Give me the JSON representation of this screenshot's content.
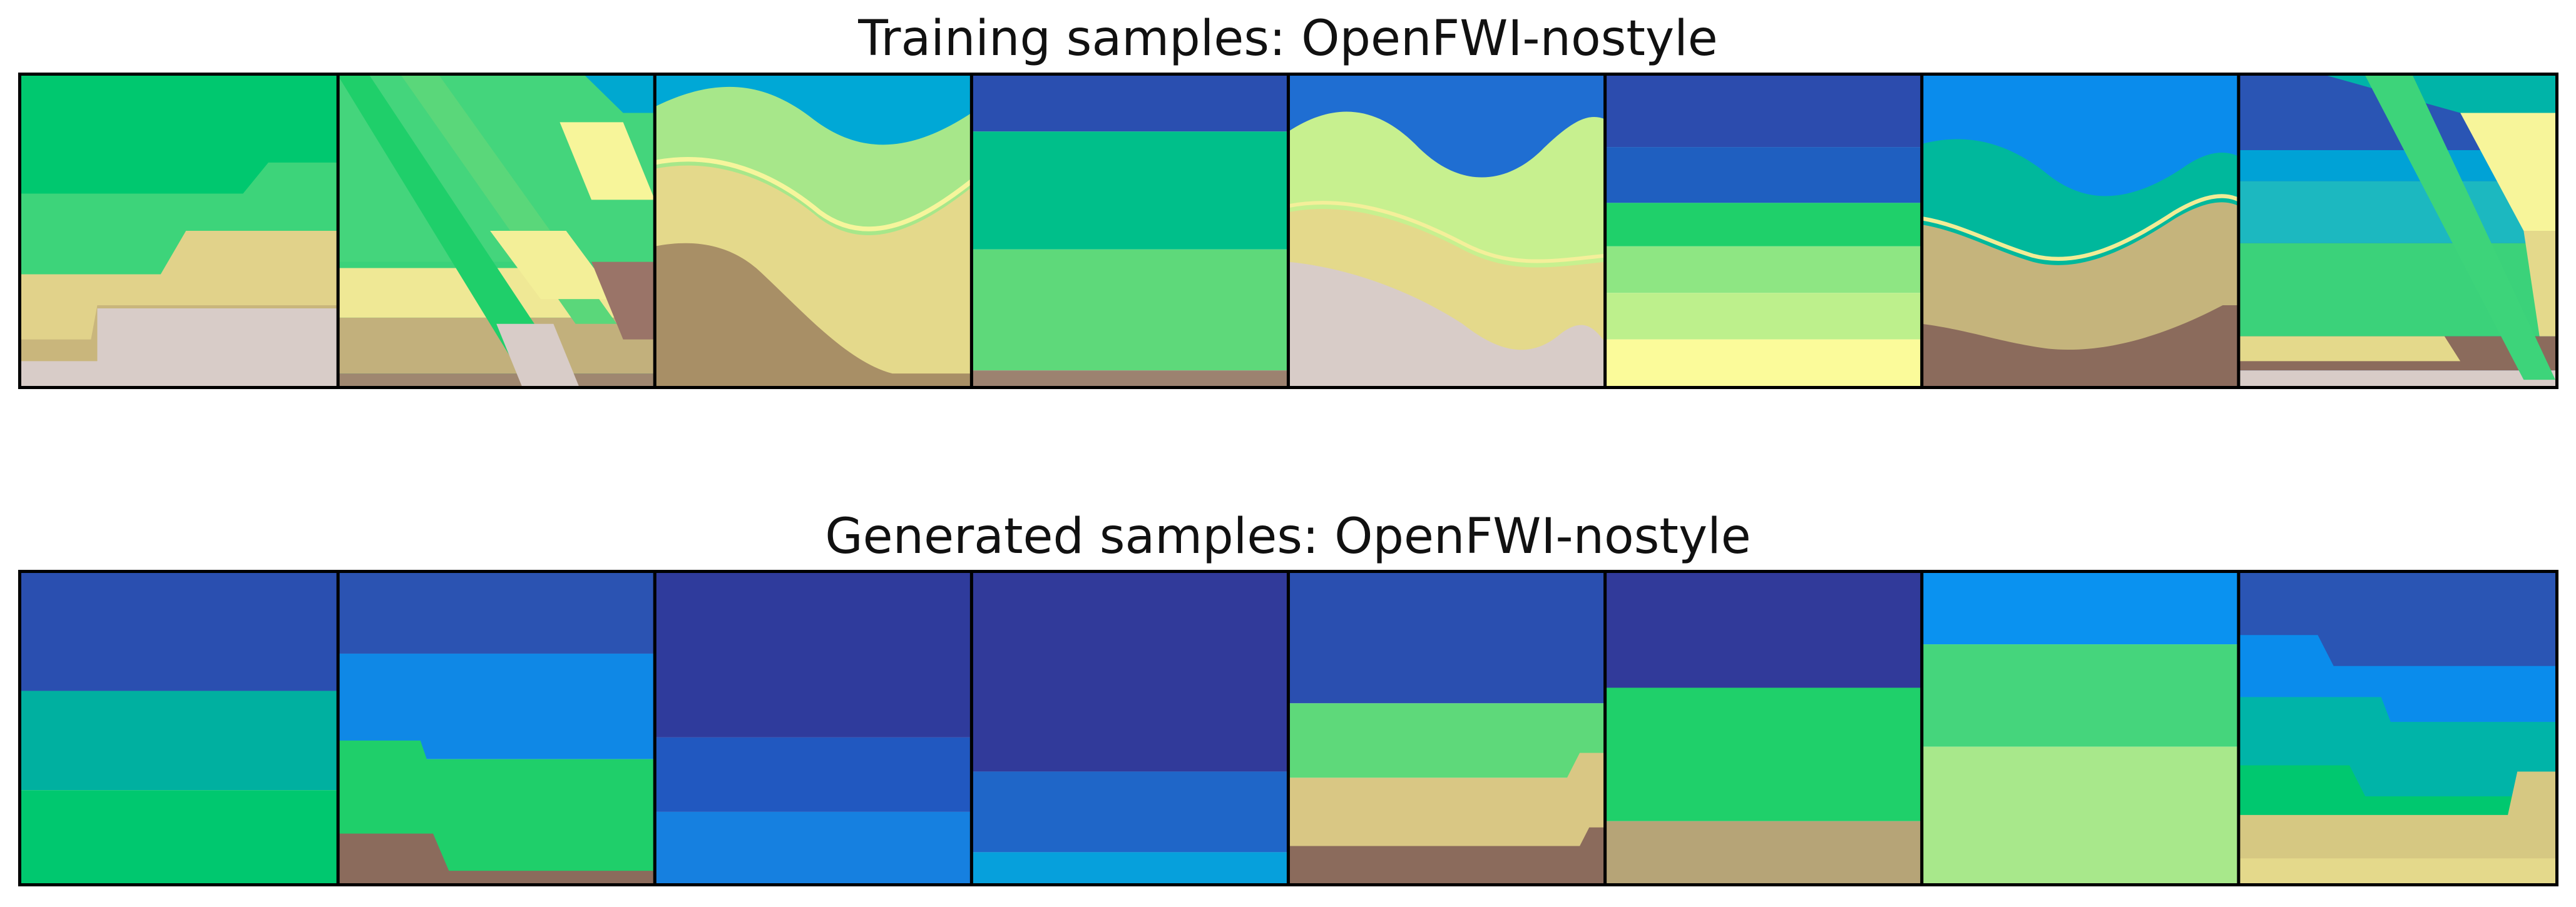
{
  "figure": {
    "training_title": "Training samples: OpenFWI-nostyle",
    "generated_title": "Generated samples: OpenFWI-nostyle"
  },
  "palette": {
    "deep_blue": "#2f3e9e",
    "royal_blue": "#2a4fb0",
    "mid_blue": "#1f66c8",
    "sky_blue": "#0b8ae8",
    "cyan": "#00a2d6",
    "teal": "#00b4a8",
    "green": "#00c27e",
    "bright_green": "#1fd06a",
    "light_green": "#5ed97a",
    "pale_green": "#9de58b",
    "lime": "#c7f08f",
    "yellow": "#f7f59a",
    "khaki": "#e4d98b",
    "tan": "#c8b57d",
    "brown": "#a89068",
    "dark_brown": "#8b6b5c",
    "gray_pink": "#d8ccc8",
    "border": "#000000",
    "background": "#ffffff"
  },
  "panels": {
    "training_count": 8,
    "generated_count": 8
  }
}
